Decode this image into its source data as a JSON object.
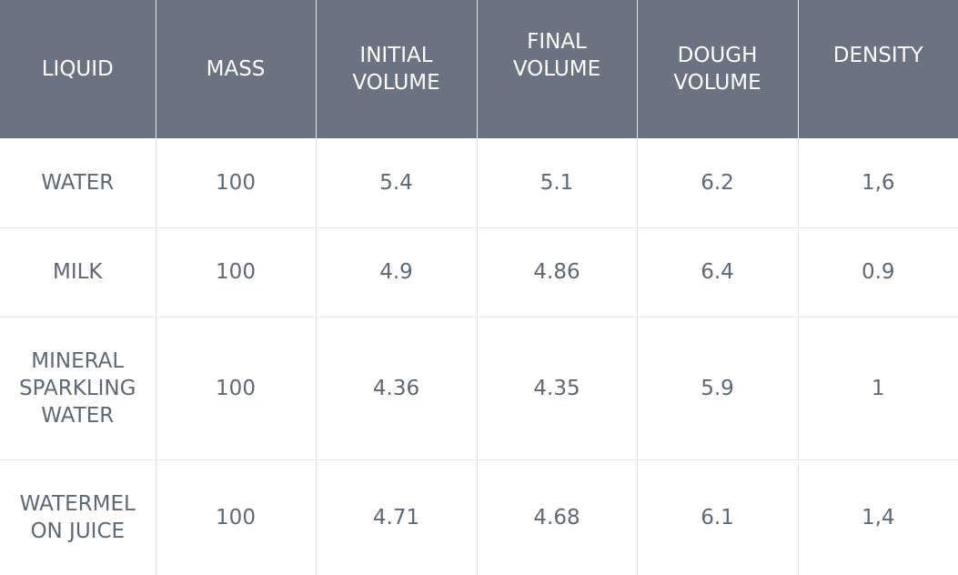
{
  "table": {
    "headers": [
      [
        "LIQUID"
      ],
      [
        "MASS"
      ],
      [
        "INITIAL",
        "VOLUME"
      ],
      [
        "FINAL",
        "VOLUME"
      ],
      [
        "DOUGH",
        "VOLUME"
      ],
      [
        "DENSITY"
      ]
    ],
    "rows": [
      {
        "liquid": [
          "WATER"
        ],
        "mass": "100",
        "initial_volume": "5.4",
        "final_volume": "5.1",
        "dough_volume": "6.2",
        "density": "1,6"
      },
      {
        "liquid": [
          "MILK"
        ],
        "mass": "100",
        "initial_volume": "4.9",
        "final_volume": "4.86",
        "dough_volume": "6.4",
        "density": "0.9"
      },
      {
        "liquid": [
          "MINERAL",
          "SPARKLING",
          "WATER"
        ],
        "mass": "100",
        "initial_volume": "4.36",
        "final_volume": "4.35",
        "dough_volume": "5.9",
        "density": "1"
      },
      {
        "liquid": [
          "WATERMEL",
          "ON JUICE"
        ],
        "mass": "100",
        "initial_volume": "4.71",
        "final_volume": "4.68",
        "dough_volume": "6.1",
        "density": "1,4"
      }
    ]
  },
  "colors": {
    "header_bg": "#6b7280",
    "header_text": "#ffffff",
    "cell_text": "#5f6875",
    "grid_line": "#e6e8eb"
  }
}
